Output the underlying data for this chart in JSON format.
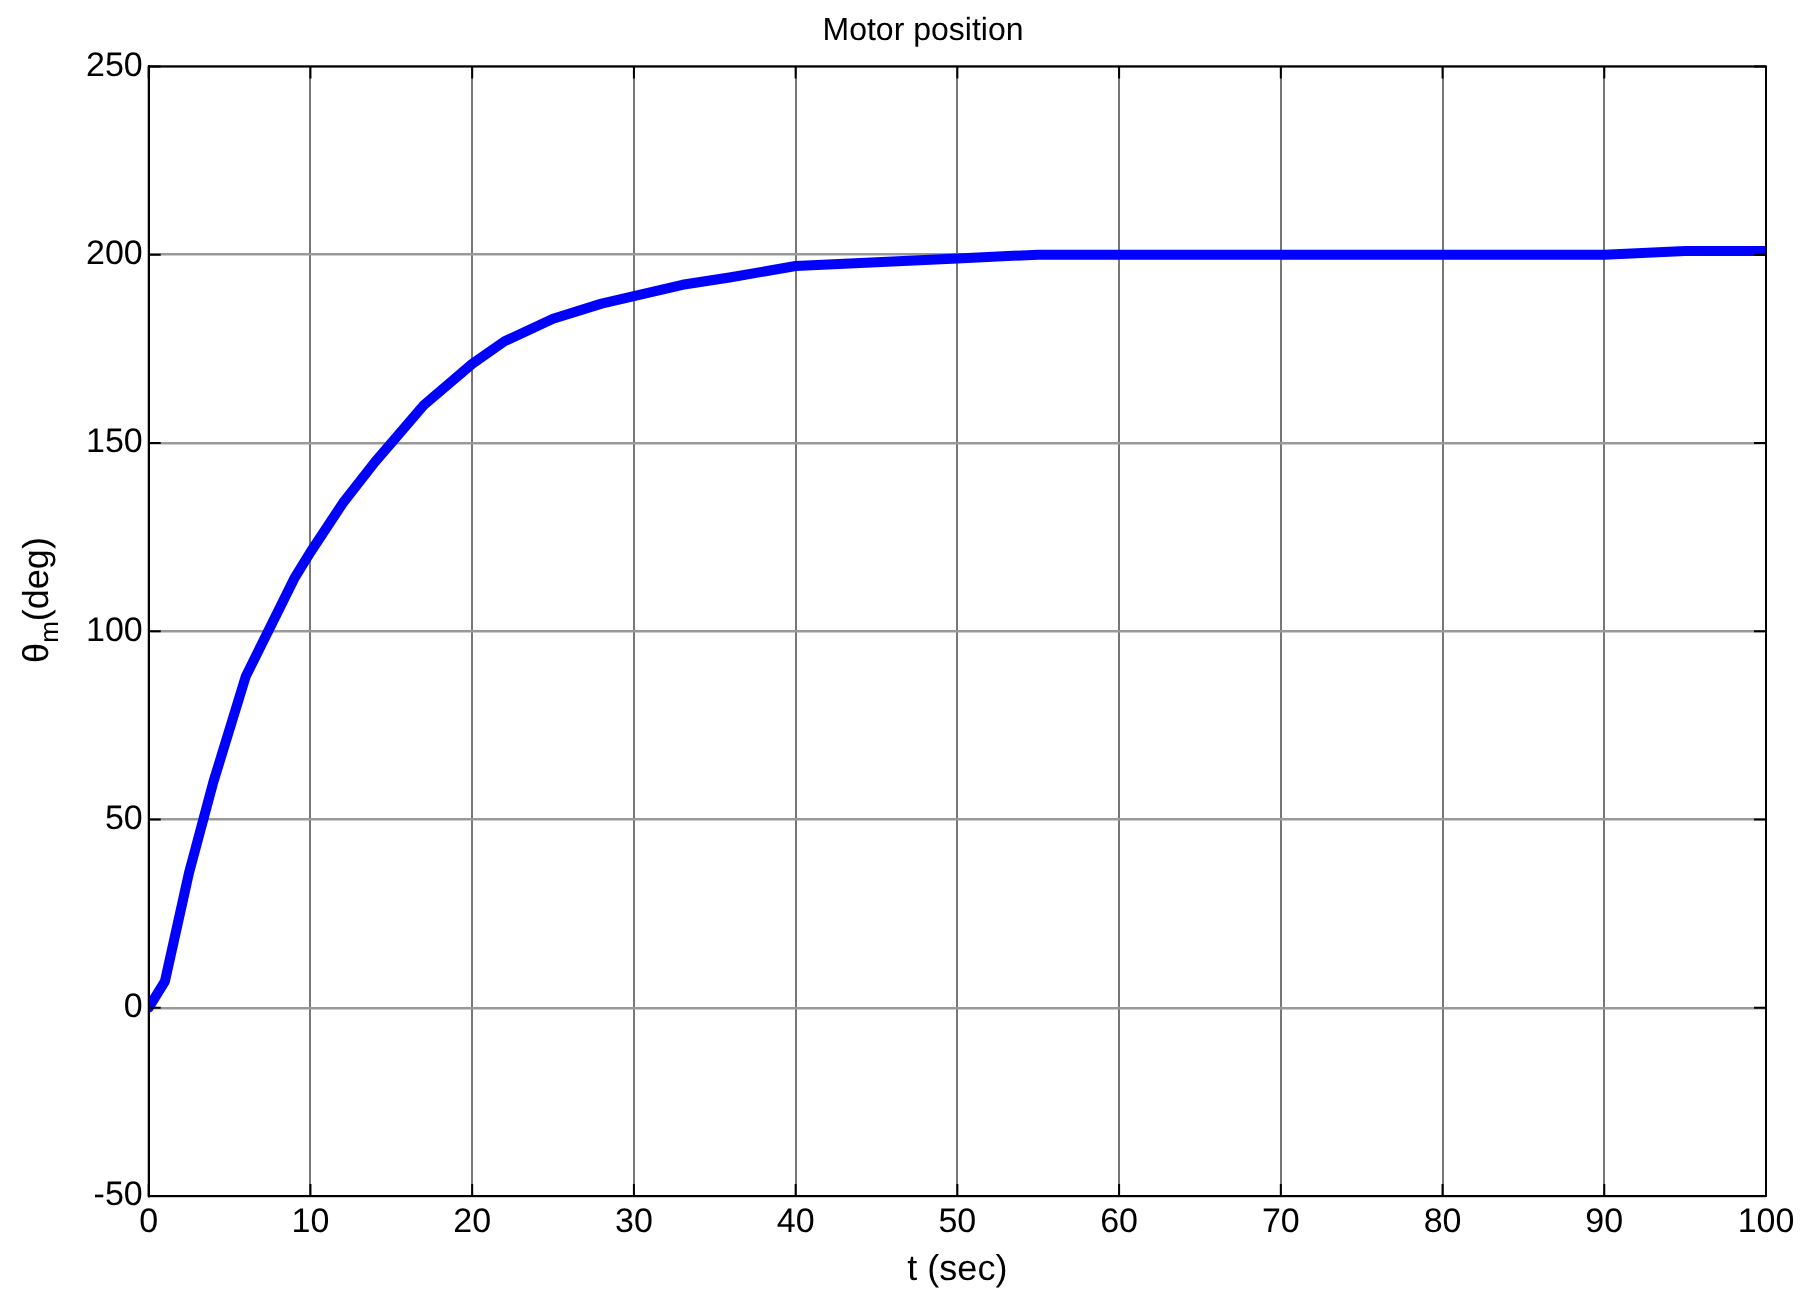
{
  "chart_data": {
    "type": "line",
    "title": "Motor position",
    "xlabel": "t (sec)",
    "ylabel": "θ$_{m}$(deg)",
    "x": [
      0,
      1,
      2.5,
      4,
      5,
      6,
      7.5,
      9,
      10,
      12,
      14,
      15,
      17,
      20,
      22,
      25,
      28,
      30,
      33,
      36,
      40,
      45,
      50,
      55,
      60,
      65,
      70,
      75,
      80,
      85,
      90,
      95,
      100
    ],
    "series": [
      {
        "color": "#0000ff",
        "values": [
          0,
          7,
          36,
          60,
          74,
          88,
          101,
          114,
          121,
          134,
          145,
          150,
          160,
          171,
          177,
          183,
          187,
          189,
          192,
          194,
          197,
          198,
          199,
          200,
          200,
          200,
          200,
          200,
          200,
          200,
          200,
          201,
          201
        ]
      }
    ],
    "xlim": [
      0,
      100
    ],
    "xticks": [
      0,
      10,
      20,
      30,
      40,
      50,
      60,
      70,
      80,
      90,
      100
    ],
    "ylim": [
      -50,
      250
    ],
    "yticks": [
      -50,
      0,
      50,
      100,
      150,
      200,
      250
    ],
    "grid": true,
    "legend": false,
    "marker": "none",
    "line_style": "solid"
  }
}
